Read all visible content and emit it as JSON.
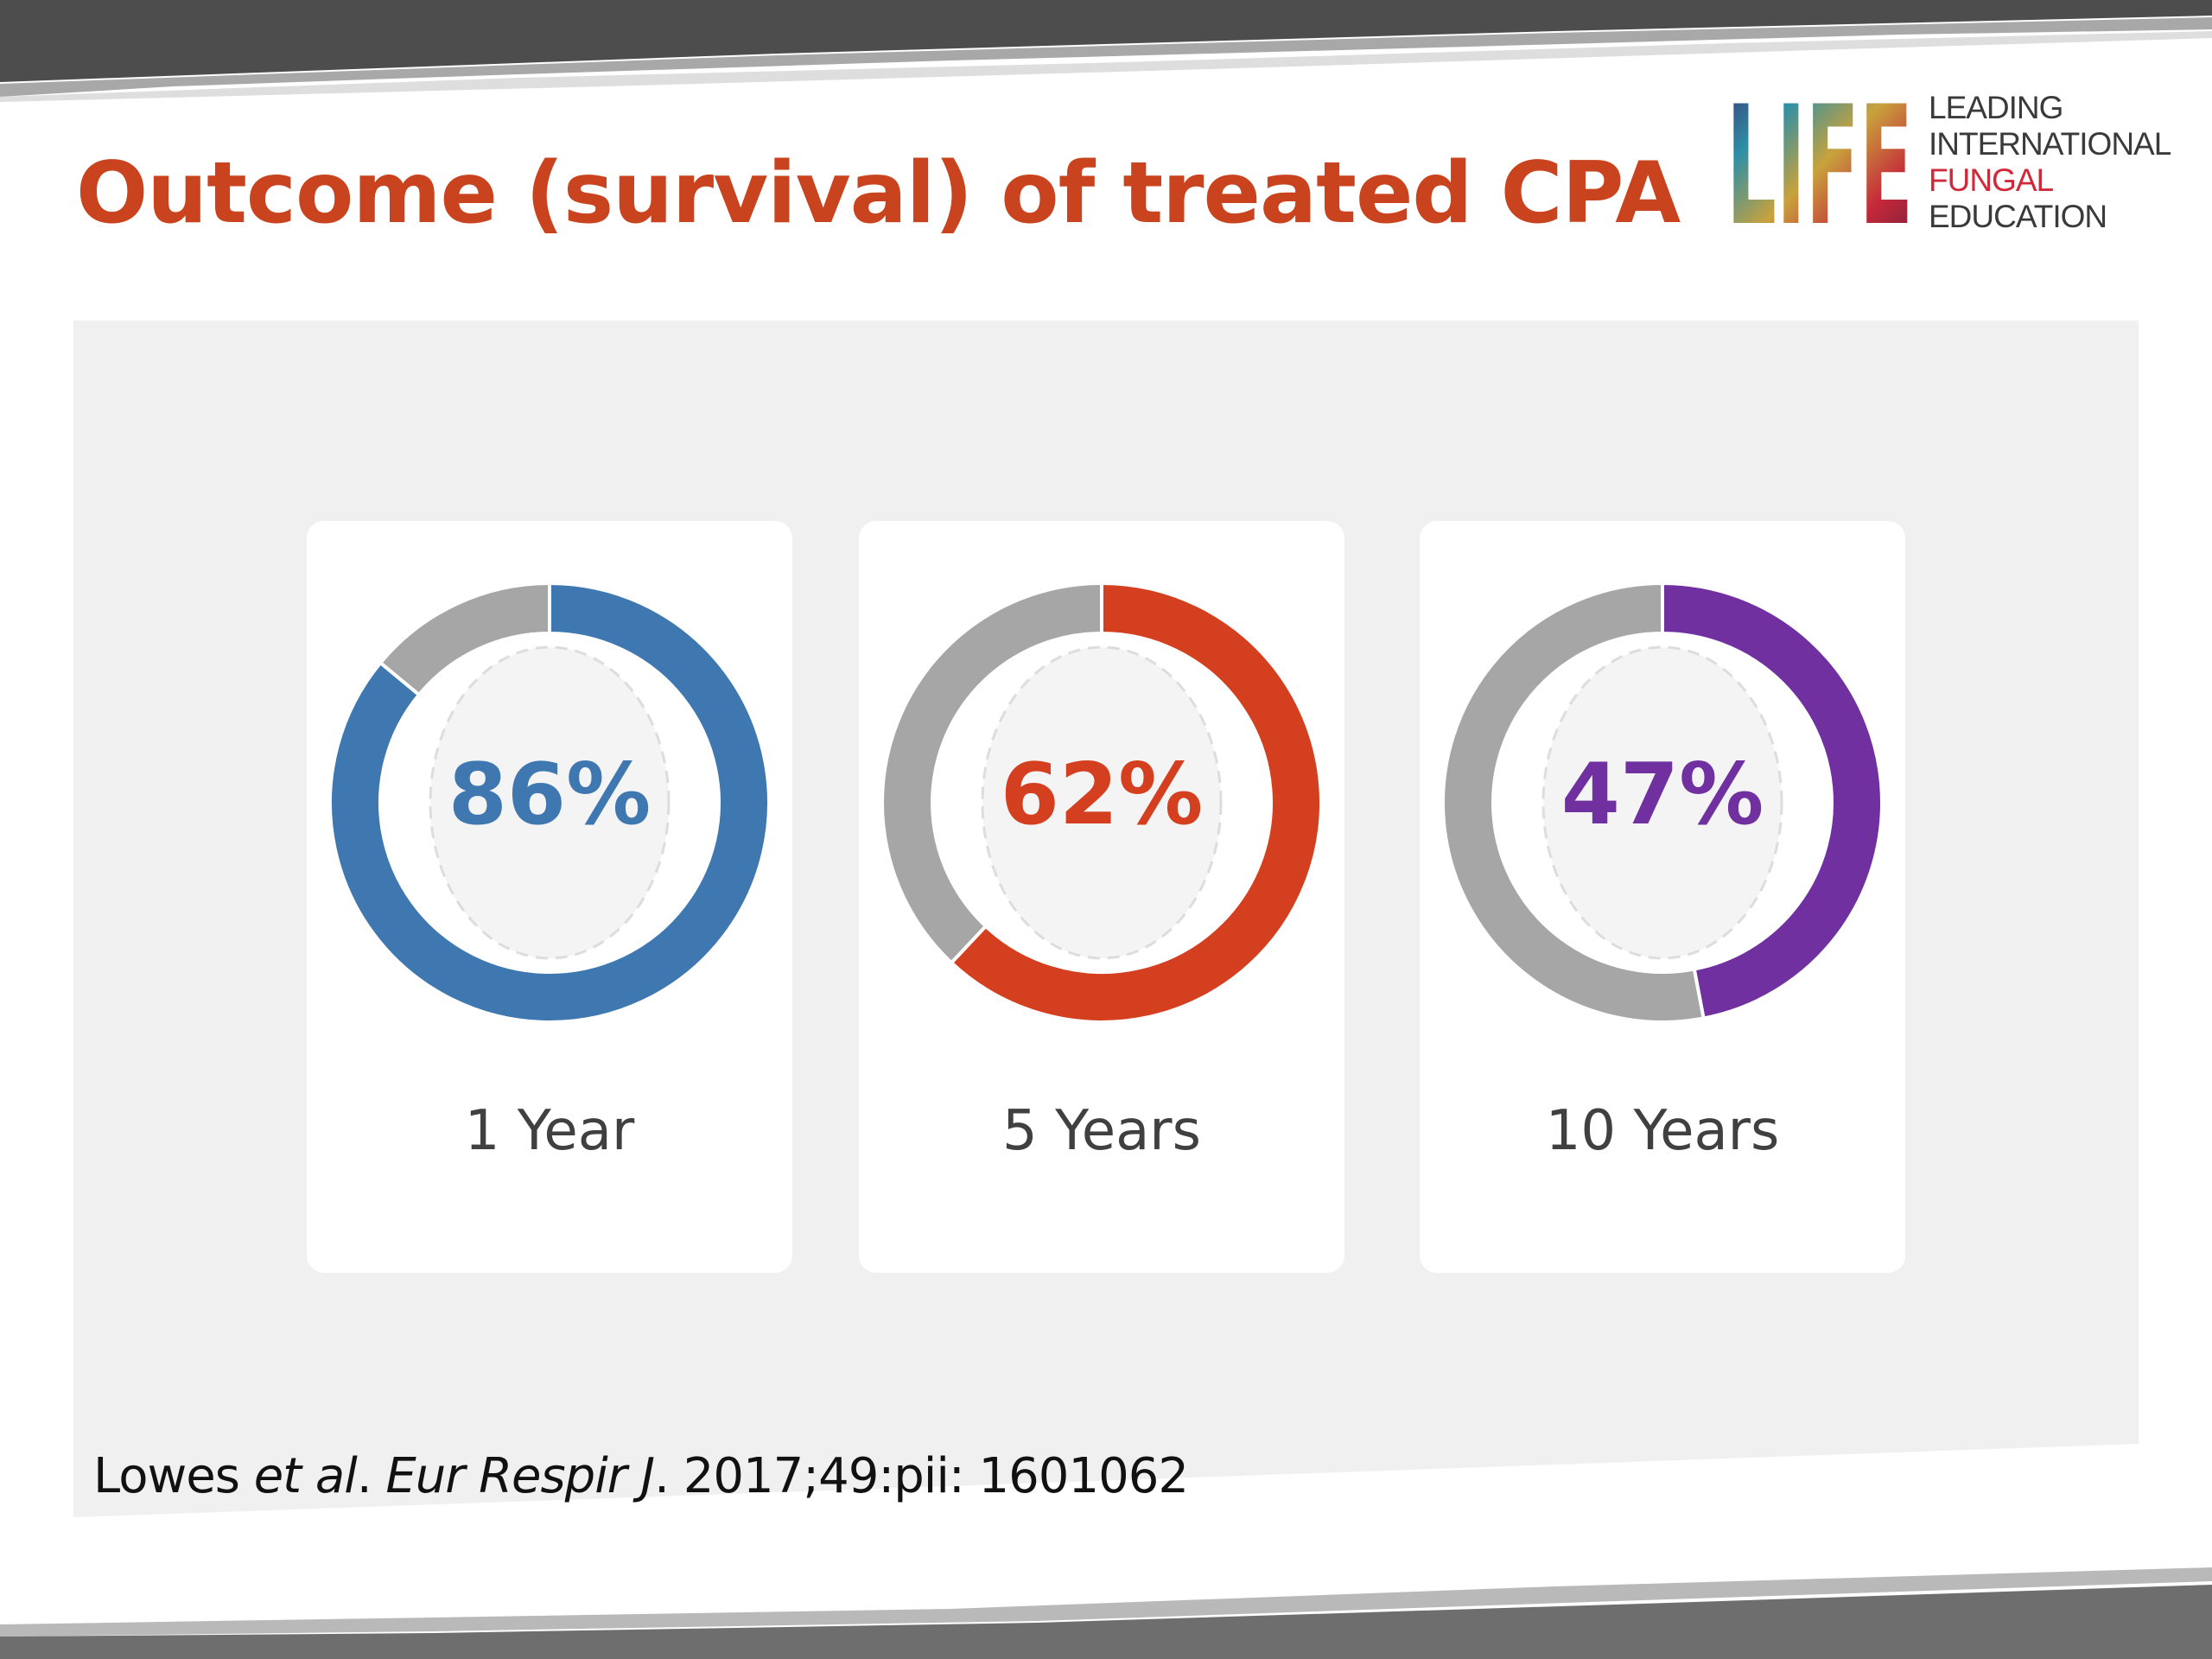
{
  "slide": {
    "title": "Outcome (survival) of treated CPA",
    "title_color": "#c9431e",
    "background_color": "#ffffff",
    "frame_color": "#4d4d4d",
    "panel_color": "#f0f0f0"
  },
  "logo": {
    "mark_text": "LIFE",
    "line1": "LEADING",
    "line2": "INTERNATIONAL",
    "line3": "FUNGAL",
    "line4": "EDUCATION",
    "text_color": "#3a3a3a",
    "highlight_color": "#d02a3a"
  },
  "chart_data": {
    "type": "pie",
    "title": "Outcome (survival) of treated CPA",
    "categories": [
      "1 Year",
      "5 Years",
      "10 Years"
    ],
    "values": [
      86,
      62,
      47
    ],
    "units": "%",
    "remainder_color": "#a6a6a6",
    "series": [
      {
        "name": "1 Year",
        "value": 86,
        "label": "86%",
        "color": "#3f78b0"
      },
      {
        "name": "5 Years",
        "value": 62,
        "label": "62%",
        "color": "#d4401f"
      },
      {
        "name": "10 Years",
        "value": 47,
        "label": "47%",
        "color": "#7030a0"
      }
    ]
  },
  "citation": {
    "author": "Lowes ",
    "etal": "et al",
    "dot": ". ",
    "journal": "Eur Respir J",
    "ref": ". 2017;49:pii: 1601062"
  }
}
